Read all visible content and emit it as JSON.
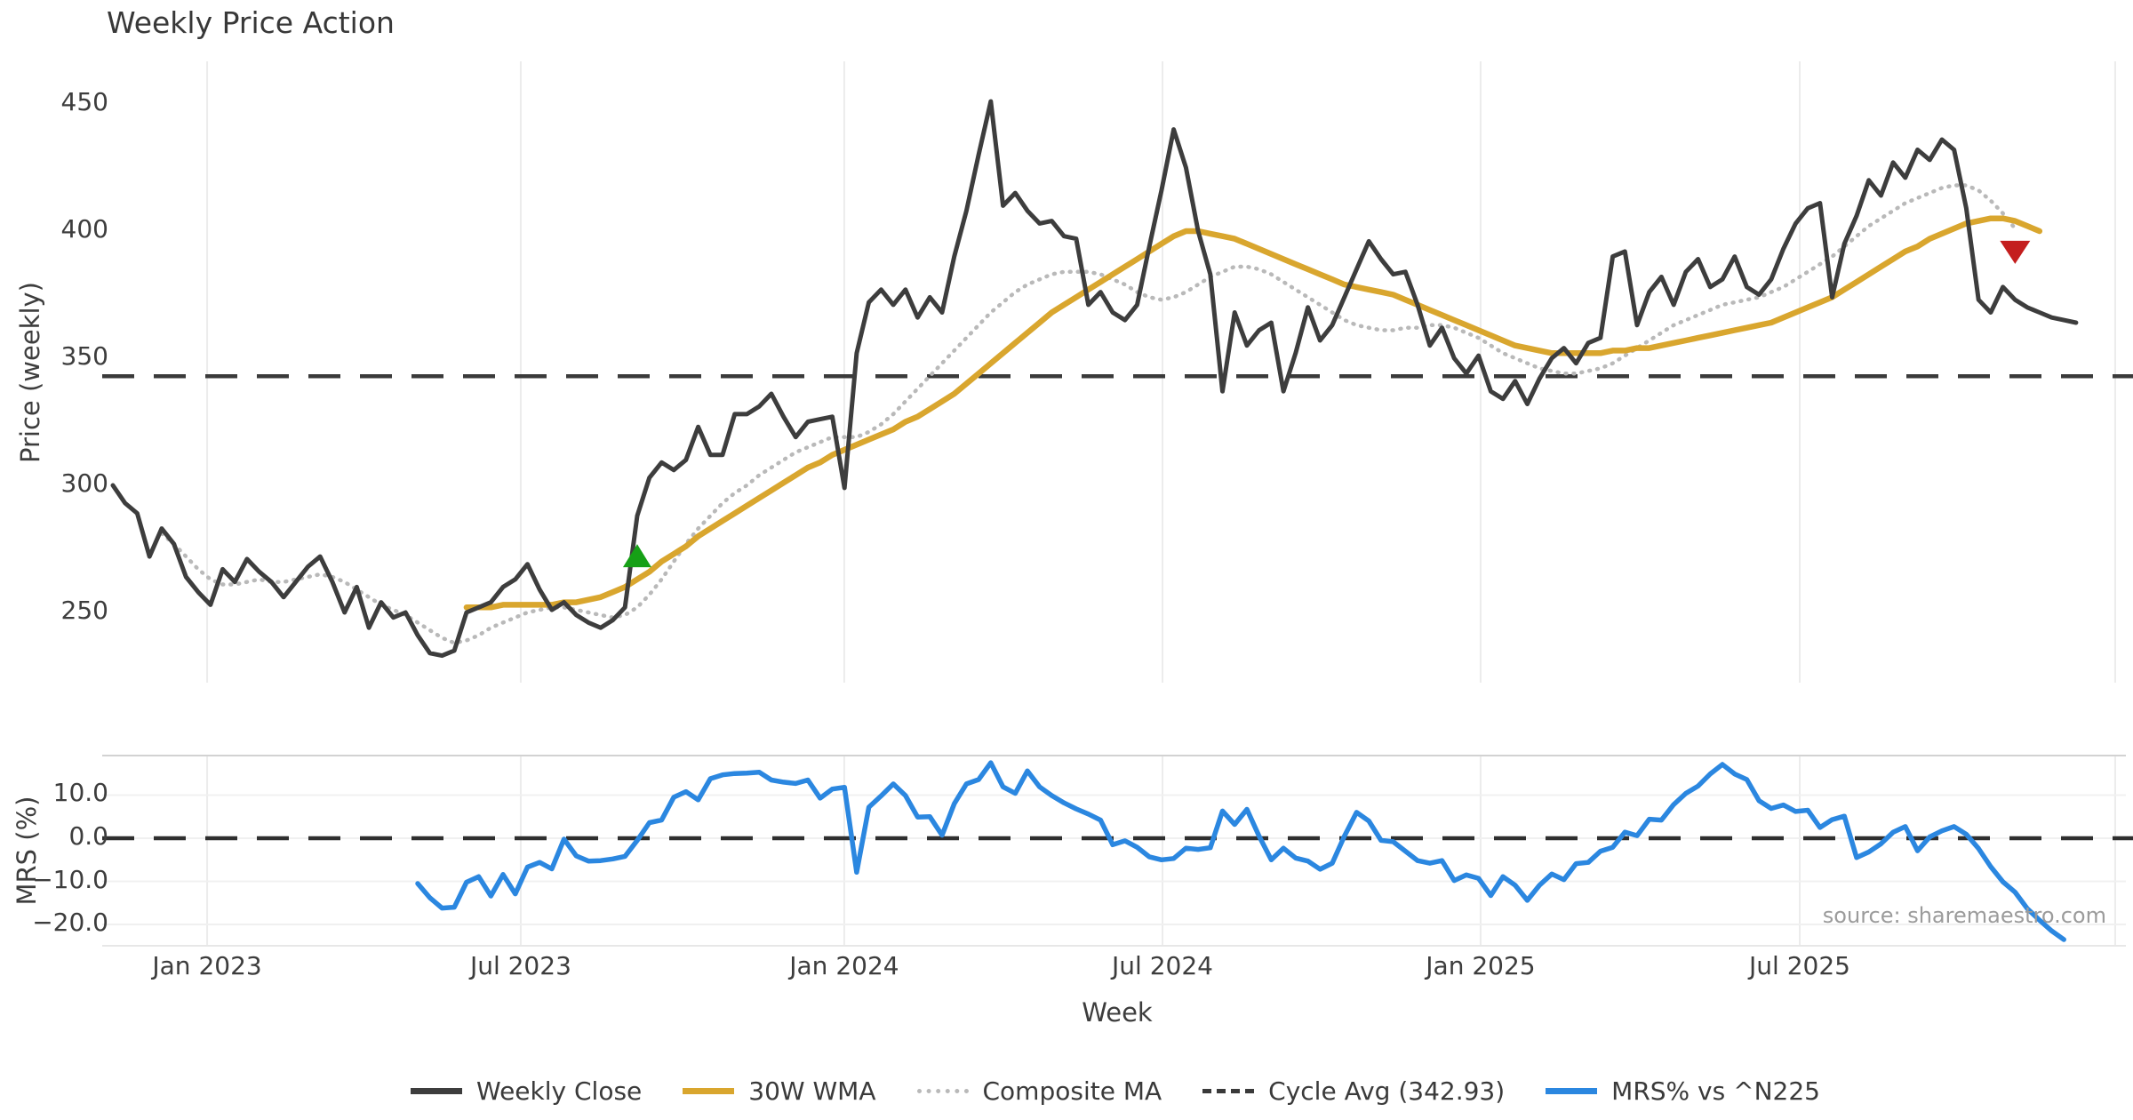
{
  "title": "Weekly Price Action",
  "watermark": "source: sharemaestro.com",
  "axes": {
    "x_label": "Week",
    "price_label": "Price (weekly)",
    "mrs_label": "MRS (%)",
    "price_ticks": [
      {
        "label": "450",
        "v": 450
      },
      {
        "label": "400",
        "v": 400
      },
      {
        "label": "350",
        "v": 350
      },
      {
        "label": "300",
        "v": 300
      },
      {
        "label": "250",
        "v": 250
      }
    ],
    "mrs_ticks": [
      {
        "label": "10.0",
        "v": 10
      },
      {
        "label": "0.0",
        "v": 0
      },
      {
        "label": "−10.0",
        "v": -10
      },
      {
        "label": "−20.0",
        "v": -20
      }
    ],
    "x_ticks": [
      {
        "label": "Jan 2023",
        "week": 7.73
      },
      {
        "label": "Jul 2023",
        "week": 33.45
      },
      {
        "label": "Jan 2024",
        "week": 59.98
      },
      {
        "label": "Jul 2024",
        "week": 86.08
      },
      {
        "label": "Jan 2025",
        "week": 112.17
      },
      {
        "label": "Jul 2025",
        "week": 138.34
      }
    ],
    "extra_gridline_week": 164.21
  },
  "colors": {
    "weekly_close": "#3d3d3d",
    "wma30": "#d9a62e",
    "composite": "#b9b9b9",
    "cycle_avg": "#3a3a3a",
    "mrs": "#2b87e0",
    "buy_marker": "#16a016",
    "sell_marker": "#c41e1e",
    "grid_v": "#ececec",
    "grid_h": "#f0f0f0",
    "panel_edge": "#d2d2d2"
  },
  "legend": [
    {
      "label": "Weekly Close",
      "style": "solid",
      "color": "#3d3d3d"
    },
    {
      "label": "30W WMA",
      "style": "solid",
      "color": "#d9a62e"
    },
    {
      "label": "Composite MA",
      "style": "dotted",
      "color": "#b9b9b9"
    },
    {
      "label": "Cycle Avg (342.93)",
      "style": "dashed",
      "color": "#3a3a3a"
    },
    {
      "label": "MRS% vs ^N225",
      "style": "solid",
      "color": "#2b87e0"
    }
  ],
  "chart_data": {
    "type": "line",
    "title": "Weekly Price Action",
    "xlabel": "Week",
    "x_unit": "weeks starting Nov 2022, one point per week",
    "panels": [
      {
        "name": "price",
        "ylabel": "Price (weekly)",
        "ylim": [
          222,
          467
        ],
        "yticks": [
          450,
          400,
          350,
          300,
          250
        ],
        "grid": "vertical"
      },
      {
        "name": "mrs",
        "ylabel": "MRS (%)",
        "ylim": [
          -25,
          19
        ],
        "yticks": [
          10,
          0,
          -10,
          -20
        ],
        "grid": "both"
      }
    ],
    "cycle_avg": 342.93,
    "series": {
      "weekly_close": {
        "name": "Weekly Close",
        "panel": "price",
        "start_week": 0,
        "values": [
          300,
          293,
          289,
          272,
          283,
          277,
          264,
          258,
          253,
          267,
          262,
          271,
          266,
          262,
          256,
          262,
          268,
          272,
          262,
          250,
          260,
          244,
          254,
          248,
          250,
          241,
          234,
          233,
          235,
          250,
          252,
          254,
          260,
          263,
          269,
          259,
          251,
          254,
          249,
          246,
          244,
          247,
          252,
          288,
          303,
          309,
          306,
          310,
          323,
          312,
          312,
          328,
          328,
          331,
          336,
          327,
          319,
          325,
          326,
          327,
          299,
          352,
          372,
          377,
          371,
          377,
          366,
          374,
          368,
          390,
          408,
          430,
          451,
          410,
          415,
          408,
          403,
          404,
          398,
          397,
          371,
          376,
          368,
          365,
          371,
          394,
          416,
          440,
          425,
          400,
          383,
          337,
          368,
          355,
          361,
          364,
          337,
          352,
          370,
          357,
          363,
          374,
          385,
          396,
          389,
          383,
          384,
          371,
          355,
          362,
          350,
          344,
          351,
          337,
          334,
          341,
          332,
          342,
          350,
          354,
          348,
          356,
          358,
          390,
          392,
          363,
          376,
          382,
          371,
          384,
          389,
          378,
          381,
          390,
          378,
          375,
          381,
          393,
          403,
          409,
          411,
          374,
          395,
          406,
          420,
          414,
          427,
          421,
          432,
          428,
          436,
          432,
          409,
          373,
          368,
          378,
          373,
          370,
          368,
          366,
          365,
          364
        ]
      },
      "wma_30w": {
        "name": "30W WMA",
        "panel": "price",
        "start_week": 29,
        "values": [
          252,
          252,
          252,
          253,
          253,
          253,
          253,
          253,
          254,
          254,
          255,
          256,
          258,
          260,
          263,
          266,
          270,
          273,
          276,
          280,
          283,
          286,
          289,
          292,
          295,
          298,
          301,
          304,
          307,
          309,
          312,
          314,
          316,
          318,
          320,
          322,
          325,
          327,
          330,
          333,
          336,
          340,
          344,
          348,
          352,
          356,
          360,
          364,
          368,
          371,
          374,
          377,
          380,
          383,
          386,
          389,
          392,
          395,
          398,
          400,
          400,
          399,
          398,
          397,
          395,
          393,
          391,
          389,
          387,
          385,
          383,
          381,
          379,
          378,
          377,
          376,
          375,
          373,
          371,
          369,
          367,
          365,
          363,
          361,
          359,
          357,
          355,
          354,
          353,
          352,
          352,
          352,
          352,
          352,
          353,
          353,
          354,
          354,
          355,
          356,
          357,
          358,
          359,
          360,
          361,
          362,
          363,
          364,
          366,
          368,
          370,
          372,
          374,
          377,
          380,
          383,
          386,
          389,
          392,
          394,
          397,
          399,
          401,
          403,
          404,
          405,
          405,
          404,
          402,
          400
        ]
      },
      "composite_ma": {
        "name": "Composite MA",
        "panel": "price",
        "start_week": 4,
        "values": [
          281,
          277,
          272,
          267,
          263,
          261,
          261,
          262,
          263,
          262,
          262,
          263,
          264,
          265,
          264,
          262,
          259,
          256,
          253,
          251,
          249,
          246,
          243,
          240,
          238,
          239,
          241,
          244,
          246,
          248,
          250,
          251,
          252,
          252,
          251,
          250,
          249,
          248,
          249,
          252,
          257,
          263,
          270,
          277,
          283,
          288,
          293,
          297,
          300,
          304,
          307,
          310,
          313,
          315,
          317,
          319,
          319,
          319,
          321,
          324,
          328,
          333,
          338,
          343,
          348,
          353,
          358,
          363,
          368,
          372,
          376,
          379,
          381,
          383,
          384,
          384,
          384,
          383,
          381,
          379,
          376,
          374,
          373,
          374,
          376,
          379,
          382,
          384,
          386,
          386,
          385,
          383,
          380,
          377,
          374,
          371,
          368,
          365,
          363,
          362,
          361,
          361,
          362,
          362,
          363,
          363,
          362,
          360,
          358,
          355,
          352,
          350,
          348,
          346,
          345,
          344,
          344,
          345,
          346,
          348,
          351,
          354,
          357,
          360,
          363,
          365,
          367,
          369,
          371,
          372,
          373,
          374,
          376,
          378,
          381,
          384,
          387,
          390,
          394,
          398,
          402,
          405,
          408,
          411,
          413,
          415,
          417,
          418,
          418,
          416,
          412,
          407,
          401
        ]
      },
      "mrs_pct": {
        "name": "MRS% vs ^N225",
        "panel": "mrs",
        "start_week": 25,
        "values": [
          -10.5,
          -13.8,
          -16.2,
          -16.0,
          -10.2,
          -8.9,
          -13.4,
          -8.4,
          -12.9,
          -6.7,
          -5.6,
          -7.1,
          -0.2,
          -4.1,
          -5.3,
          -5.2,
          -4.8,
          -4.2,
          -0.5,
          3.6,
          4.2,
          9.5,
          10.8,
          8.9,
          13.8,
          14.7,
          15.0,
          15.1,
          15.3,
          13.5,
          13.0,
          12.7,
          13.5,
          9.3,
          11.4,
          11.8,
          -7.9,
          7.2,
          9.8,
          12.6,
          9.9,
          4.9,
          5.0,
          0.7,
          8.0,
          12.6,
          13.6,
          17.5,
          11.9,
          10.4,
          15.6,
          11.9,
          9.9,
          8.2,
          6.8,
          5.6,
          4.2,
          -1.5,
          -0.6,
          -2.1,
          -4.3,
          -5.0,
          -4.7,
          -2.3,
          -2.6,
          -2.2,
          6.3,
          3.2,
          6.7,
          0.5,
          -5.0,
          -2.3,
          -4.6,
          -5.3,
          -7.2,
          -5.8,
          0.5,
          6.0,
          4.0,
          -0.5,
          -0.8,
          -3.0,
          -5.2,
          -5.8,
          -5.2,
          -9.8,
          -8.5,
          -9.3,
          -13.3,
          -8.9,
          -10.9,
          -14.4,
          -10.9,
          -8.3,
          -9.6,
          -5.9,
          -5.6,
          -3.0,
          -2.1,
          1.4,
          0.6,
          4.4,
          4.2,
          7.8,
          10.4,
          12.1,
          14.9,
          17.1,
          14.9,
          13.6,
          8.7,
          6.9,
          7.7,
          6.2,
          6.5,
          2.5,
          4.3,
          5.1,
          -4.5,
          -3.2,
          -1.3,
          1.4,
          2.7,
          -2.9,
          0.3,
          1.7,
          2.7,
          0.9,
          -2.4,
          -6.6,
          -10.1,
          -12.5,
          -16.3,
          -19.0,
          -21.5,
          -23.5
        ]
      }
    },
    "signals": [
      {
        "type": "buy",
        "marker": "triangle-up",
        "week": 43,
        "price": 272
      },
      {
        "type": "sell",
        "marker": "triangle-down",
        "week": 156,
        "price": 392
      }
    ]
  }
}
